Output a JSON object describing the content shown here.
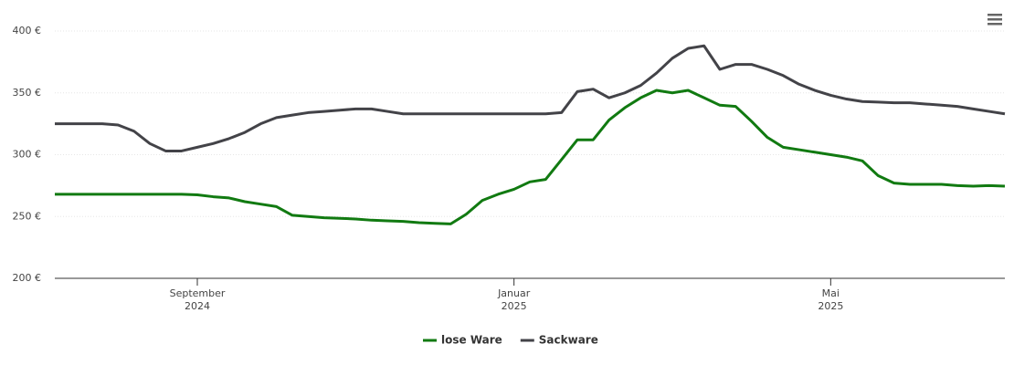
{
  "chart_data": {
    "type": "line",
    "categories": [
      null,
      null,
      null,
      null,
      null,
      null,
      null,
      null,
      null,
      "September 2024",
      null,
      null,
      null,
      null,
      null,
      null,
      null,
      null,
      null,
      null,
      null,
      null,
      null,
      null,
      null,
      null,
      null,
      null,
      null,
      "Januar 2025",
      null,
      null,
      null,
      null,
      null,
      null,
      null,
      null,
      null,
      null,
      null,
      null,
      null,
      null,
      null,
      null,
      null,
      null,
      null,
      "Mai 2025",
      null,
      null,
      null,
      null,
      null,
      null,
      null,
      null,
      null,
      null,
      null
    ],
    "series": [
      {
        "name": "lose Ware",
        "color": "#117a11",
        "values": [
          268,
          268,
          268,
          268,
          268,
          268,
          268,
          268,
          268,
          267.5,
          266,
          265,
          262,
          260,
          258,
          251,
          250,
          249,
          248.5,
          248,
          247,
          246.5,
          246,
          245,
          244.5,
          244,
          252,
          263,
          268,
          272,
          278,
          280,
          296,
          312,
          312,
          328,
          338,
          346,
          352,
          350,
          352,
          346,
          340,
          339,
          327,
          314,
          306,
          304,
          302,
          300,
          298,
          295,
          283,
          277,
          276,
          276,
          276,
          275,
          274.5,
          275,
          274.5
        ]
      },
      {
        "name": "Sackware",
        "color": "#434348",
        "values": [
          325,
          325,
          325,
          325,
          324,
          319,
          309,
          303,
          303,
          306,
          309,
          313,
          318,
          325,
          330,
          332,
          334,
          335,
          336,
          337,
          337,
          335,
          333,
          333,
          333,
          333,
          333,
          333,
          333,
          333,
          333,
          333,
          334,
          351,
          353,
          346,
          350,
          356,
          366,
          378,
          386,
          388,
          369,
          373,
          373,
          369,
          364,
          357,
          352,
          348,
          345,
          343,
          342.5,
          342,
          342,
          341,
          340,
          339,
          337,
          335,
          333
        ]
      }
    ],
    "ylim": [
      200,
      400
    ],
    "yticks": [
      {
        "value": 200,
        "label": "200 €"
      },
      {
        "value": 250,
        "label": "250 €"
      },
      {
        "value": 300,
        "label": "300 €"
      },
      {
        "value": 350,
        "label": "350 €"
      },
      {
        "value": 400,
        "label": "400 €"
      }
    ],
    "grid": true
  }
}
